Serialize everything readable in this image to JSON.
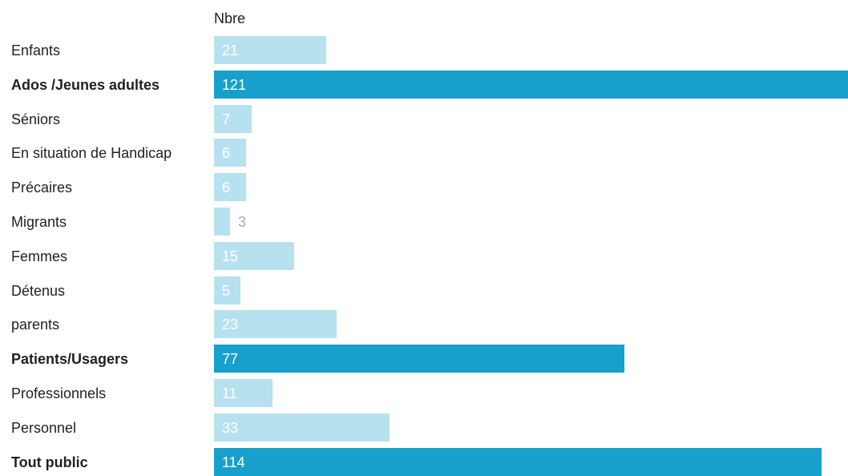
{
  "chart_data": {
    "type": "bar",
    "orientation": "horizontal",
    "column_header": "Nbre",
    "categories": [
      "Enfants",
      "Ados /Jeunes adultes",
      "Séniors",
      "En situation de Handicap",
      "Précaires",
      "Migrants",
      "Femmes",
      "Détenus",
      "parents",
      "Patients/Usagers",
      "Professionnels",
      "Personnel",
      "Tout public"
    ],
    "values": [
      21,
      121,
      7,
      6,
      6,
      3,
      15,
      5,
      23,
      77,
      11,
      33,
      114
    ],
    "highlighted": [
      false,
      true,
      false,
      false,
      false,
      false,
      false,
      false,
      false,
      true,
      false,
      false,
      true
    ],
    "xlim": [
      0,
      118
    ],
    "grid": false,
    "legend": "none",
    "colors": {
      "bar": "#b8e1f0",
      "bar_highlight": "#17a0cc",
      "value_label_inside": "#ffffff",
      "value_label_outside": "#aaaaaa"
    }
  }
}
